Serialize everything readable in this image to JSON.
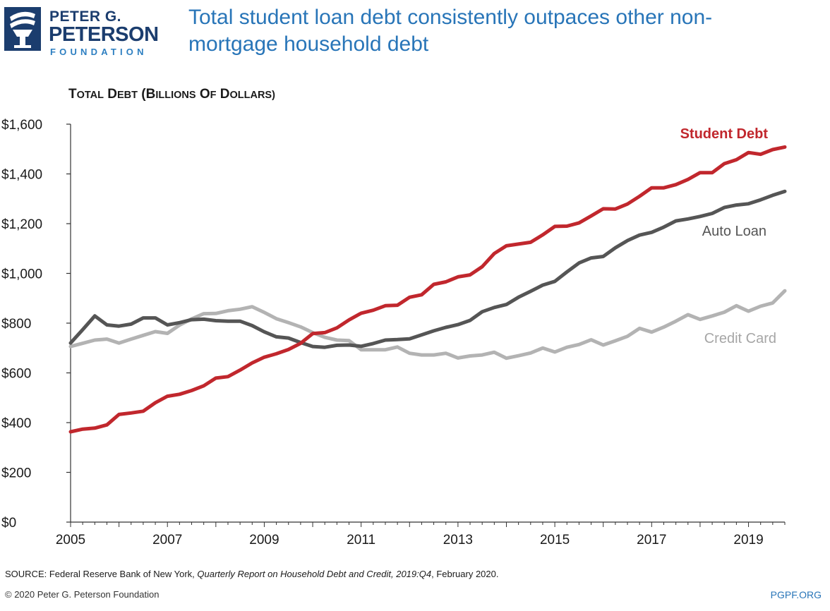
{
  "brand": {
    "line1": "PETER G.",
    "line2": "PETERSON",
    "line3": "FOUNDATION",
    "colors": {
      "navy": "#1b3d6e",
      "blue": "#2875b8"
    }
  },
  "headline": "Total student loan debt consistently outpaces other non-mortgage household debt",
  "footer": {
    "source_prefix": "SOURCE: Federal Reserve Bank of New York, ",
    "source_title": "Quarterly Report on Household Debt and Credit, 2019:Q4",
    "source_suffix": ", February 2020.",
    "copyright": "© 2020 Peter G. Peterson Foundation",
    "site": "PGPF.ORG"
  },
  "chart_data": {
    "type": "line",
    "ylabel": "TOTAL DEBT (BILLIONS OF DOLLARS)",
    "ylim": [
      0,
      1600
    ],
    "yticks": [
      0,
      200,
      400,
      600,
      800,
      1000,
      1200,
      1400,
      1600
    ],
    "ytick_labels": [
      "$0",
      "$200",
      "$400",
      "$600",
      "$800",
      "$1,000",
      "$1,200",
      "$1,400",
      "$1,600"
    ],
    "xlim": [
      2005,
      2019.75
    ],
    "xticks": [
      2005,
      2007,
      2009,
      2011,
      2013,
      2015,
      2017,
      2019
    ],
    "xtick_labels": [
      "2005",
      "2007",
      "2009",
      "2011",
      "2013",
      "2015",
      "2017",
      "2019"
    ],
    "grid": false,
    "legend": "inline labels at right",
    "x": [
      2005,
      2005.25,
      2005.5,
      2005.75,
      2006,
      2006.25,
      2006.5,
      2006.75,
      2007,
      2007.25,
      2007.5,
      2007.75,
      2008,
      2008.25,
      2008.5,
      2008.75,
      2009,
      2009.25,
      2009.5,
      2009.75,
      2010,
      2010.25,
      2010.5,
      2010.75,
      2011,
      2011.25,
      2011.5,
      2011.75,
      2012,
      2012.25,
      2012.5,
      2012.75,
      2013,
      2013.25,
      2013.5,
      2013.75,
      2014,
      2014.25,
      2014.5,
      2014.75,
      2015,
      2015.25,
      2015.5,
      2015.75,
      2016,
      2016.25,
      2016.5,
      2016.75,
      2017,
      2017.25,
      2017.5,
      2017.75,
      2018,
      2018.25,
      2018.5,
      2018.75,
      2019,
      2019.25,
      2019.5,
      2019.75
    ],
    "series": [
      {
        "name": "Student Debt",
        "color": "#c1272d",
        "values": [
          363,
          374,
          378,
          391,
          433,
          439,
          446,
          480,
          506,
          514,
          529,
          548,
          579,
          585,
          611,
          640,
          663,
          677,
          694,
          719,
          758,
          762,
          781,
          813,
          840,
          852,
          870,
          872,
          904,
          914,
          956,
          966,
          986,
          994,
          1027,
          1080,
          1111,
          1118,
          1125,
          1155,
          1189,
          1190,
          1203,
          1231,
          1260,
          1259,
          1279,
          1310,
          1344,
          1344,
          1357,
          1378,
          1405,
          1405,
          1441,
          1457,
          1486,
          1479,
          1498,
          1508
        ]
      },
      {
        "name": "Auto Loan",
        "color": "#555555",
        "values": [
          720,
          774,
          829,
          793,
          788,
          796,
          821,
          821,
          793,
          802,
          814,
          816,
          810,
          808,
          808,
          790,
          765,
          745,
          740,
          722,
          706,
          703,
          711,
          712,
          707,
          718,
          732,
          734,
          737,
          753,
          769,
          783,
          794,
          811,
          846,
          863,
          875,
          904,
          928,
          953,
          968,
          1006,
          1042,
          1062,
          1068,
          1103,
          1132,
          1154,
          1165,
          1186,
          1211,
          1219,
          1229,
          1241,
          1265,
          1275,
          1280,
          1296,
          1314,
          1330
        ]
      },
      {
        "name": "Credit Card",
        "color": "#b3b3b3",
        "values": [
          706,
          719,
          732,
          736,
          720,
          736,
          751,
          766,
          759,
          792,
          817,
          838,
          839,
          850,
          856,
          866,
          843,
          818,
          802,
          785,
          762,
          743,
          732,
          730,
          693,
          693,
          693,
          704,
          679,
          672,
          672,
          679,
          660,
          668,
          672,
          683,
          659,
          669,
          680,
          700,
          684,
          703,
          714,
          733,
          712,
          729,
          747,
          779,
          764,
          784,
          808,
          834,
          815,
          829,
          844,
          870,
          848,
          868,
          881,
          930
        ]
      }
    ]
  }
}
